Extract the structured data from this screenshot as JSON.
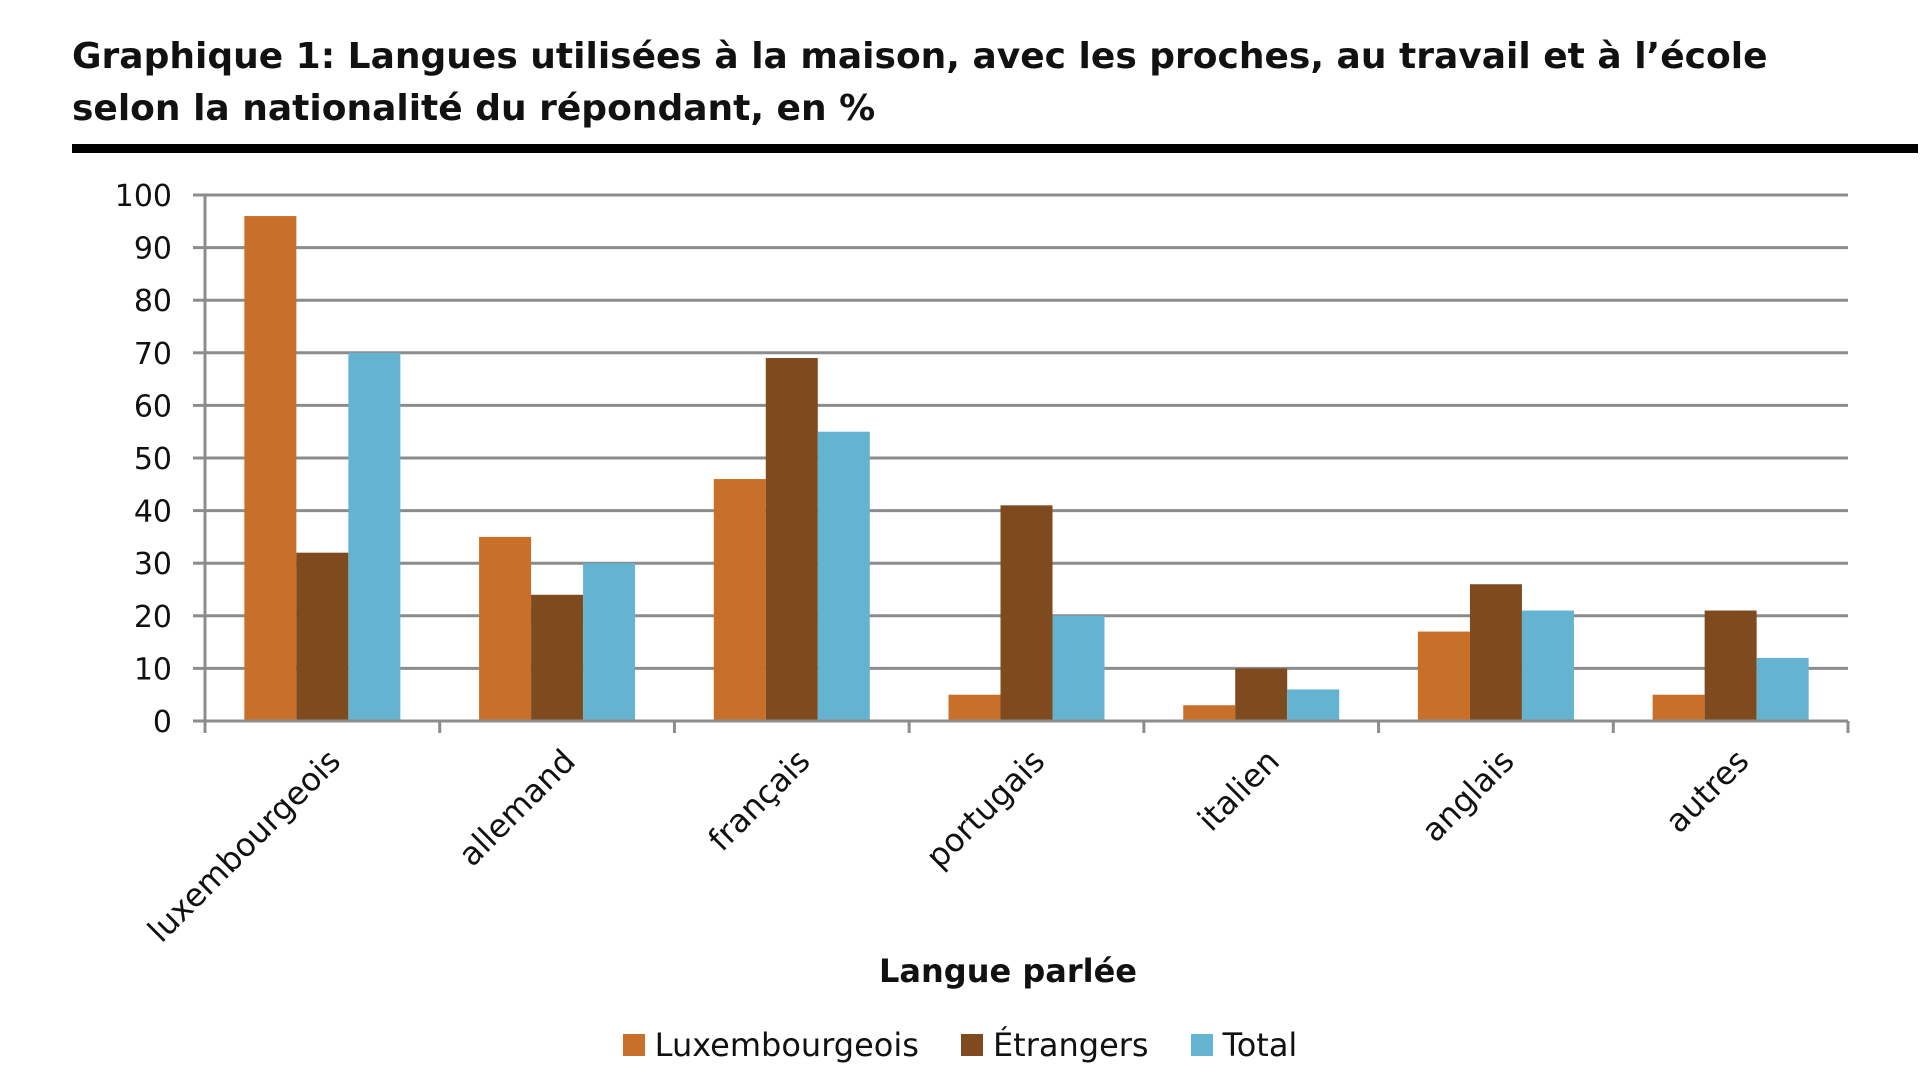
{
  "title_line1": "Graphique 1: Langues utilisées à la maison, avec les proches, au travail et à l’école",
  "title_line2": "selon la nationalité du répondant, en %",
  "chart_data": {
    "type": "bar",
    "title": "Graphique 1: Langues utilisées à la maison, avec les proches, au travail et à l’école selon la nationalité du répondant, en %",
    "xlabel": "Langue parlée",
    "ylabel": "",
    "ylim": [
      0,
      100
    ],
    "yticks": [
      0,
      10,
      20,
      30,
      40,
      50,
      60,
      70,
      80,
      90,
      100
    ],
    "grid": true,
    "legend_position": "bottom",
    "categories": [
      "luxembourgeois",
      "allemand",
      "français",
      "portugais",
      "italien",
      "anglais",
      "autres"
    ],
    "series": [
      {
        "name": "Luxembourgeois",
        "color": "#c8702a",
        "values": [
          96,
          35,
          46,
          5,
          3,
          17,
          5
        ]
      },
      {
        "name": "Étrangers",
        "color": "#7f4a1e",
        "values": [
          32,
          24,
          69,
          41,
          10,
          26,
          21
        ]
      },
      {
        "name": "Total",
        "color": "#63b3d1",
        "values": [
          70,
          30,
          55,
          20,
          6,
          21,
          12
        ]
      }
    ]
  }
}
